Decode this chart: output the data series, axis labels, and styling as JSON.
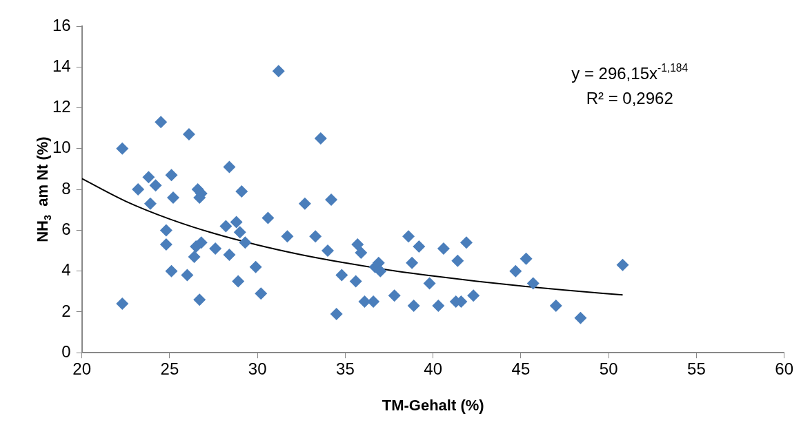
{
  "chart_data": {
    "type": "scatter",
    "xlabel": "TM-Gehalt (%)",
    "ylabel": "NH$_{3}$  am Nt (%)",
    "xlim": [
      20,
      60
    ],
    "xticks": [
      20,
      25,
      30,
      35,
      40,
      45,
      50,
      55,
      60
    ],
    "ylim": [
      0,
      16
    ],
    "yticks": [
      0,
      2,
      4,
      6,
      8,
      10,
      12,
      14,
      16
    ],
    "grid": false,
    "legend": false,
    "marker": "diamond",
    "series": [
      {
        "color": "#4a7ebb",
        "x": [
          22.3,
          22.3,
          23.2,
          23.8,
          23.9,
          24.2,
          24.5,
          24.8,
          24.8,
          25.1,
          25.1,
          25.2,
          26.0,
          26.1,
          26.4,
          26.5,
          26.6,
          26.7,
          26.7,
          26.8,
          26.8,
          27.6,
          28.2,
          28.4,
          28.4,
          28.8,
          28.9,
          29.0,
          29.1,
          29.3,
          29.9,
          30.2,
          30.6,
          31.2,
          31.7,
          32.7,
          33.3,
          33.6,
          34.0,
          34.2,
          34.5,
          34.8,
          35.6,
          35.7,
          35.9,
          36.1,
          36.6,
          36.7,
          36.9,
          37.0,
          37.8,
          38.6,
          38.8,
          38.9,
          39.2,
          39.8,
          40.3,
          40.6,
          41.3,
          41.4,
          41.6,
          41.9,
          42.3,
          44.7,
          45.3,
          45.7,
          47.0,
          48.4,
          50.8
        ],
        "values": [
          10.0,
          2.4,
          8.0,
          8.6,
          7.3,
          8.2,
          11.3,
          6.0,
          5.3,
          8.7,
          4.0,
          7.6,
          3.8,
          10.7,
          4.7,
          5.2,
          8.0,
          7.6,
          2.6,
          7.8,
          5.4,
          5.1,
          6.2,
          9.1,
          4.8,
          6.4,
          3.5,
          5.9,
          7.9,
          5.4,
          4.2,
          2.9,
          6.6,
          13.8,
          5.7,
          7.3,
          5.7,
          10.5,
          5.0,
          7.5,
          1.9,
          3.8,
          3.5,
          5.3,
          4.9,
          2.5,
          2.5,
          4.2,
          4.4,
          4.0,
          2.8,
          5.7,
          4.4,
          2.3,
          5.2,
          3.4,
          2.3,
          5.1,
          2.5,
          4.5,
          2.5,
          5.4,
          2.8,
          4.0,
          4.6,
          3.4,
          2.3,
          1.7,
          4.3
        ]
      },
      {
        "type": "line",
        "color": "#000000",
        "marker": "none",
        "x": [
          20,
          22.5,
          25,
          27.5,
          30,
          32.5,
          35,
          37.5,
          40,
          42.5,
          45,
          47.5,
          50.8
        ],
        "values": [
          8.53,
          7.42,
          6.55,
          5.85,
          5.28,
          4.8,
          4.4,
          4.05,
          3.76,
          3.5,
          3.27,
          3.07,
          2.83
        ]
      }
    ],
    "annotations": [
      "y = 296,15x$^{-1,184}$",
      "R² = 0,2962"
    ]
  }
}
